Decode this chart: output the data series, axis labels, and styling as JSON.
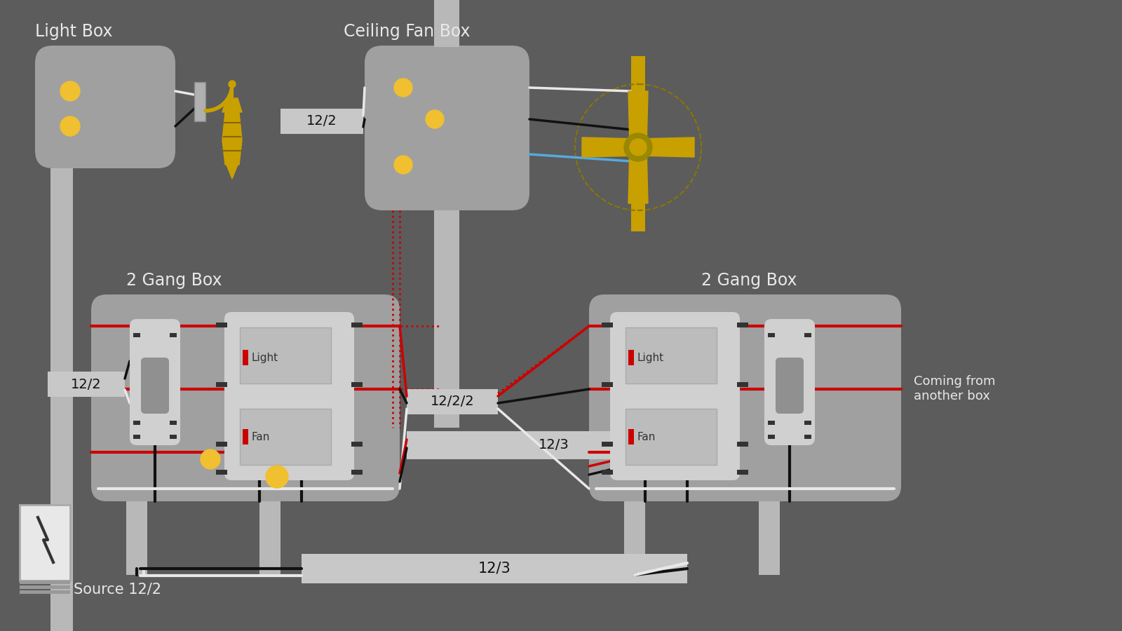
{
  "bg_color": "#5c5c5c",
  "colors": {
    "white": "#e8e8e8",
    "black": "#111111",
    "red": "#cc0000",
    "blue": "#55aadd",
    "yellow": "#f0c030",
    "gold": "#c8a000",
    "gray_box": "#a0a0a0",
    "gray_mid": "#b0b0b0",
    "gray_light": "#c8c8c8",
    "gray_cond": "#b8b8b8",
    "sw_bg": "#d0d0d0",
    "sw_inner": "#bcbcbc",
    "dark": "#333333"
  },
  "labels": {
    "light_box": "Light Box",
    "ceiling_fan_box": "Ceiling Fan Box",
    "gang_left": "2 Gang Box",
    "gang_right": "2 Gang Box",
    "source": "Source 12/2",
    "w122_left": "12/2",
    "w122_top": "12/2",
    "w1222": "12/2/2",
    "w123_mid": "12/3",
    "w123_bot": "12/3",
    "coming_from": "Coming from\nanother box"
  }
}
